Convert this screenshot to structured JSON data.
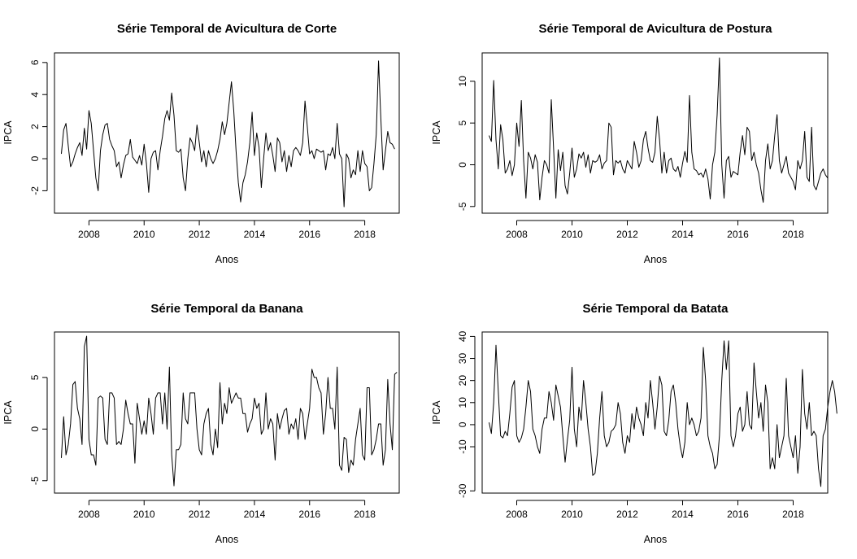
{
  "chart_data": [
    {
      "type": "line",
      "title": "Série Temporal de Avicultura de Corte",
      "xlabel": "Anos",
      "ylabel": "IPCA",
      "xlim": [
        2006.75,
        2019.25
      ],
      "ylim": [
        -3.4,
        6.6
      ],
      "xticks": [
        2008,
        2010,
        2012,
        2014,
        2016,
        2018
      ],
      "xtick_labels": [
        "2008",
        "2010",
        "2012",
        "2014",
        "2016",
        "2018"
      ],
      "yticks": [
        -2,
        0,
        2,
        4,
        6
      ],
      "ytick_labels": [
        "-2",
        "0",
        "2",
        "4",
        "6"
      ],
      "grid": false,
      "legend": "none",
      "series": [
        {
          "x_start": 2007.0,
          "x_step": 0.0833333,
          "values": [
            0.3,
            1.8,
            2.2,
            0.8,
            -0.5,
            -0.2,
            0.3,
            0.7,
            1.0,
            0.2,
            1.9,
            0.6,
            3.0,
            2.2,
            0.5,
            -1.2,
            -2.0,
            0.5,
            1.5,
            2.1,
            2.2,
            1.2,
            0.8,
            0.5,
            -0.5,
            -0.2,
            -1.2,
            -0.4,
            0.2,
            0.3,
            1.2,
            0.1,
            -0.1,
            -0.3,
            0.2,
            -0.4,
            0.9,
            -0.3,
            -2.1,
            0.0,
            0.4,
            0.5,
            -0.7,
            0.5,
            1.4,
            2.5,
            3.0,
            2.4,
            4.1,
            2.7,
            0.5,
            0.4,
            0.6,
            -1.2,
            -2.0,
            0.0,
            1.3,
            1.0,
            0.5,
            2.1,
            1.0,
            -0.2,
            0.5,
            -0.5,
            0.5,
            0.0,
            -0.3,
            0.0,
            0.5,
            1.2,
            2.3,
            1.5,
            2.2,
            3.5,
            4.8,
            3.0,
            0.5,
            -1.5,
            -2.7,
            -1.5,
            -1.0,
            -0.2,
            1.0,
            2.9,
            0.2,
            1.6,
            0.7,
            -1.8,
            0.0,
            1.6,
            0.5,
            1.0,
            0.2,
            -0.8,
            1.3,
            1.0,
            -0.2,
            0.5,
            -0.8,
            0.2,
            -0.5,
            0.5,
            0.7,
            0.5,
            0.2,
            1.0,
            3.6,
            2.0,
            0.3,
            0.5,
            0.0,
            0.6,
            0.5,
            0.4,
            0.5,
            -0.7,
            0.3,
            0.2,
            0.7,
            0.0,
            2.2,
            0.3,
            0.0,
            -3.0,
            0.3,
            0.0,
            -1.2,
            -0.7,
            -1.0,
            0.5,
            -0.8,
            0.5,
            -0.3,
            -0.5,
            -2.0,
            -1.8,
            -0.3,
            1.5,
            6.1,
            2.5,
            -0.7,
            0.5,
            1.7,
            1.0,
            0.9,
            0.6
          ]
        }
      ]
    },
    {
      "type": "line",
      "title": "Série Temporal de Avicultura de Postura",
      "xlabel": "Anos",
      "ylabel": "IPCA",
      "xlim": [
        2006.75,
        2019.25
      ],
      "ylim": [
        -5.8,
        13.4
      ],
      "xticks": [
        2008,
        2010,
        2012,
        2014,
        2016,
        2018
      ],
      "xtick_labels": [
        "2008",
        "2010",
        "2012",
        "2014",
        "2016",
        "2018"
      ],
      "yticks": [
        -5,
        0,
        5,
        10
      ],
      "ytick_labels": [
        "-5",
        "0",
        "5",
        "10"
      ],
      "grid": false,
      "legend": "none",
      "series": [
        {
          "x_start": 2007.0,
          "x_step": 0.0833333,
          "values": [
            3.5,
            2.8,
            10.1,
            3.0,
            -0.5,
            4.8,
            3.0,
            -1.0,
            -0.5,
            0.5,
            -1.3,
            0.0,
            5.0,
            2.2,
            7.7,
            0.5,
            -4.0,
            1.5,
            0.8,
            -0.5,
            1.2,
            0.3,
            -4.2,
            -1.5,
            0.5,
            0.0,
            -1.0,
            7.8,
            2.0,
            -4.0,
            1.8,
            -0.7,
            1.5,
            -2.5,
            -3.5,
            -1.0,
            2.0,
            -1.5,
            -0.5,
            1.3,
            0.8,
            1.5,
            -0.3,
            1.2,
            -1.0,
            0.5,
            0.3,
            0.5,
            1.2,
            -0.5,
            0.2,
            0.5,
            5.0,
            4.5,
            -1.2,
            0.5,
            0.2,
            0.5,
            -0.5,
            -1.0,
            0.5,
            0.0,
            -0.5,
            2.8,
            1.5,
            -0.3,
            0.5,
            3.0,
            4.0,
            2.0,
            0.5,
            0.3,
            1.5,
            5.8,
            3.0,
            -1.0,
            1.5,
            -1.0,
            0.5,
            0.8,
            -0.5,
            -0.8,
            -0.2,
            -1.5,
            0.2,
            1.6,
            0.3,
            8.3,
            1.5,
            -0.5,
            -0.7,
            -1.2,
            -1.0,
            -1.5,
            -0.5,
            -1.7,
            -4.1,
            0.0,
            1.5,
            6.0,
            12.8,
            0.0,
            -4.0,
            0.5,
            1.0,
            -1.5,
            -0.8,
            -1.0,
            -1.2,
            1.5,
            3.5,
            1.2,
            4.5,
            4.0,
            0.5,
            1.5,
            0.0,
            -1.0,
            -3.0,
            -4.5,
            0.5,
            2.5,
            -0.5,
            0.5,
            3.5,
            6.0,
            0.5,
            -1.0,
            0.0,
            1.0,
            -1.0,
            -1.5,
            -2.0,
            -3.0,
            0.5,
            -0.5,
            0.5,
            4.0,
            -1.5,
            -2.0,
            4.5,
            -2.5,
            -3.0,
            -2.0,
            -1.0,
            -0.5,
            -1.2,
            -1.6
          ]
        }
      ]
    },
    {
      "type": "line",
      "title": "Série Temporal da Banana",
      "xlabel": "Anos",
      "ylabel": "IPCA",
      "xlim": [
        2006.75,
        2019.25
      ],
      "ylim": [
        -6.2,
        9.4
      ],
      "xticks": [
        2008,
        2010,
        2012,
        2014,
        2016,
        2018
      ],
      "xtick_labels": [
        "2008",
        "2010",
        "2012",
        "2014",
        "2016",
        "2018"
      ],
      "yticks": [
        -5,
        0,
        5
      ],
      "ytick_labels": [
        "-5",
        "0",
        "5"
      ],
      "grid": false,
      "legend": "none",
      "series": [
        {
          "x_start": 2007.0,
          "x_step": 0.0833333,
          "values": [
            -2.8,
            1.2,
            -2.5,
            -1.5,
            0.5,
            4.3,
            4.6,
            2.0,
            1.0,
            -1.5,
            8.0,
            9.0,
            -1.0,
            -2.5,
            -2.5,
            -3.5,
            3.0,
            3.2,
            3.0,
            -1.0,
            -1.5,
            3.5,
            3.5,
            3.0,
            -1.5,
            -1.2,
            -1.5,
            0.0,
            2.8,
            1.5,
            0.5,
            0.5,
            -3.3,
            2.5,
            1.0,
            -0.5,
            0.8,
            -0.5,
            3.0,
            1.5,
            -0.5,
            3.0,
            3.5,
            3.5,
            0.5,
            3.5,
            0.0,
            6.0,
            -2.5,
            -5.5,
            -2.0,
            -2.0,
            -1.5,
            3.5,
            1.0,
            0.5,
            3.5,
            3.5,
            3.5,
            0.0,
            -2.0,
            -2.5,
            0.5,
            1.5,
            2.0,
            -1.5,
            -2.5,
            0.0,
            -1.8,
            4.5,
            0.5,
            2.5,
            1.5,
            4.0,
            2.5,
            3.0,
            3.5,
            3.0,
            3.0,
            1.5,
            1.5,
            -0.3,
            0.5,
            1.0,
            3.0,
            2.0,
            2.5,
            -0.5,
            0.0,
            3.5,
            0.0,
            1.0,
            0.5,
            -3.0,
            1.5,
            0.0,
            1.0,
            1.8,
            2.0,
            -0.5,
            0.5,
            0.0,
            1.0,
            -1.0,
            2.0,
            1.5,
            -1.0,
            0.5,
            2.0,
            5.8,
            5.0,
            5.0,
            4.0,
            3.5,
            -0.5,
            1.5,
            5.0,
            2.0,
            2.0,
            0.0,
            6.0,
            -3.5,
            -4.0,
            -0.8,
            -1.0,
            -4.2,
            -3.0,
            -3.5,
            -1.0,
            0.5,
            2.0,
            -2.5,
            -3.0,
            4.0,
            4.0,
            -2.5,
            -2.0,
            -1.0,
            0.5,
            0.5,
            -3.5,
            -2.0,
            4.8,
            0.5,
            -2.0,
            5.3,
            5.5
          ]
        }
      ]
    },
    {
      "type": "line",
      "title": "Série Temporal da Batata",
      "xlabel": "Anos",
      "ylabel": "IPCA",
      "xlim": [
        2006.75,
        2019.25
      ],
      "ylim": [
        -31,
        42
      ],
      "xticks": [
        2008,
        2010,
        2012,
        2014,
        2016,
        2018
      ],
      "xtick_labels": [
        "2008",
        "2010",
        "2012",
        "2014",
        "2016",
        "2018"
      ],
      "yticks": [
        -30,
        -10,
        0,
        10,
        20,
        30,
        40
      ],
      "ytick_labels": [
        "-30",
        "-10",
        "0",
        "10",
        "20",
        "30",
        "40"
      ],
      "grid": false,
      "legend": "none",
      "series": [
        {
          "x_start": 2007.0,
          "x_step": 0.0833333,
          "values": [
            1,
            -4,
            10,
            36,
            15,
            -5,
            -6,
            -3,
            -5,
            5,
            17,
            20,
            -5,
            -8,
            -6,
            -2,
            8,
            20,
            15,
            -2,
            -5,
            -10,
            -13,
            -2,
            3,
            3,
            15,
            10,
            2,
            18,
            13,
            8,
            -5,
            -17,
            -7,
            2,
            26,
            -2,
            -10,
            8,
            2,
            20,
            10,
            -2,
            -10,
            -23,
            -22,
            -13,
            3,
            15,
            -5,
            -10,
            -8,
            -3,
            -2,
            0,
            10,
            5,
            -8,
            -13,
            -5,
            -8,
            5,
            -2,
            8,
            3,
            0,
            -5,
            10,
            3,
            20,
            10,
            -2,
            8,
            22,
            18,
            -3,
            -5,
            2,
            15,
            18,
            10,
            -2,
            -10,
            -15,
            -8,
            10,
            0,
            3,
            0,
            -5,
            -3,
            3,
            35,
            20,
            -5,
            -10,
            -13,
            -20,
            -18,
            -5,
            20,
            38,
            25,
            38,
            -5,
            -10,
            -5,
            5,
            8,
            -3,
            0,
            15,
            0,
            -2,
            28,
            15,
            3,
            10,
            -3,
            18,
            10,
            -20,
            -15,
            -20,
            0,
            -15,
            -10,
            -5,
            21,
            -5,
            -10,
            -15,
            -5,
            -22,
            -10,
            25,
            5,
            -2,
            10,
            -5,
            -3,
            -5,
            -20,
            -28,
            -5,
            -2,
            8,
            15,
            20,
            15,
            5
          ]
        }
      ]
    }
  ]
}
